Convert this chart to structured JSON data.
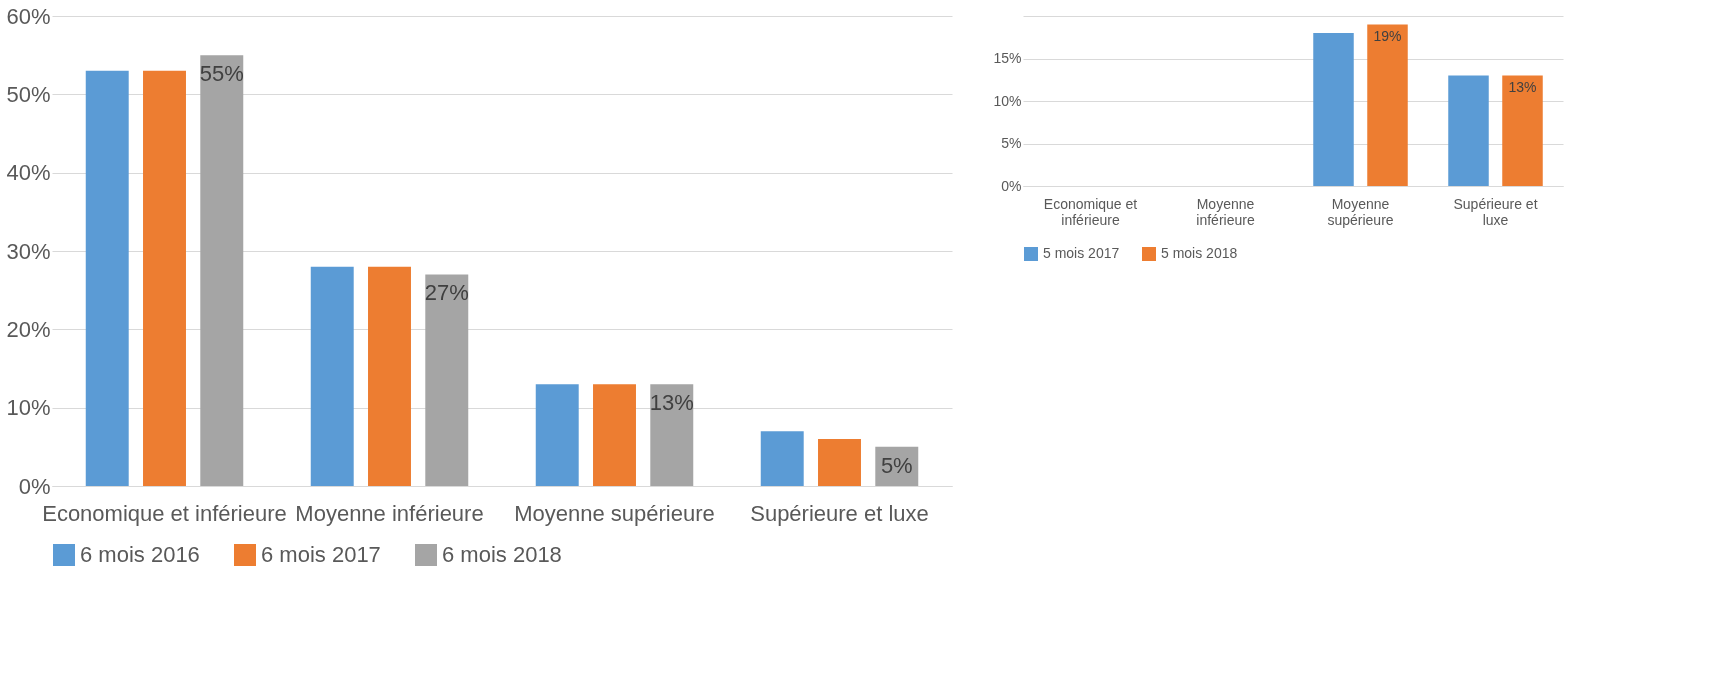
{
  "chart_data": [
    {
      "type": "bar",
      "categories": [
        "Economique et inférieure",
        "Moyenne inférieure",
        "Moyenne supérieure",
        "Supérieure et luxe"
      ],
      "series": [
        {
          "name": "6 mois 2016",
          "color": "#5b9bd5",
          "values": [
            53,
            28,
            13,
            7
          ]
        },
        {
          "name": "6 mois 2017",
          "color": "#ed7d31",
          "values": [
            53,
            28,
            13,
            6
          ]
        },
        {
          "name": "6 mois 2018",
          "color": "#a5a5a5",
          "values": [
            55,
            27,
            13,
            5
          ],
          "value_labels": [
            "55%",
            "27%",
            "13%",
            "5%"
          ]
        }
      ],
      "ylim": [
        0,
        60
      ],
      "yticks": [
        {
          "value": 0,
          "label": "0%"
        },
        {
          "value": 10,
          "label": "10%"
        },
        {
          "value": 20,
          "label": "20%"
        },
        {
          "value": 30,
          "label": "30%"
        },
        {
          "value": 40,
          "label": "40%"
        },
        {
          "value": 50,
          "label": "50%"
        },
        {
          "value": 60,
          "label": "60%"
        }
      ],
      "grid": "y",
      "legend": "bottom"
    },
    {
      "type": "bar",
      "categories": [
        "Economique et inférieure",
        "Moyenne inférieure",
        "Moyenne supérieure",
        "Supérieure et luxe"
      ],
      "series": [
        {
          "name": "5 mois 2017",
          "color": "#5b9bd5",
          "values": [
            null,
            null,
            18,
            13
          ]
        },
        {
          "name": "5 mois 2018",
          "color": "#ed7d31",
          "values": [
            null,
            null,
            19,
            13
          ],
          "value_labels": [
            null,
            null,
            "19%",
            "13%"
          ]
        }
      ],
      "ylim": [
        0,
        20
      ],
      "yticks": [
        {
          "value": 0,
          "label": "0%"
        },
        {
          "value": 5,
          "label": "5%"
        },
        {
          "value": 10,
          "label": "10%"
        },
        {
          "value": 15,
          "label": "15%"
        },
        {
          "value": 20,
          "label": null
        }
      ],
      "grid": "y",
      "legend": "bottom"
    }
  ]
}
